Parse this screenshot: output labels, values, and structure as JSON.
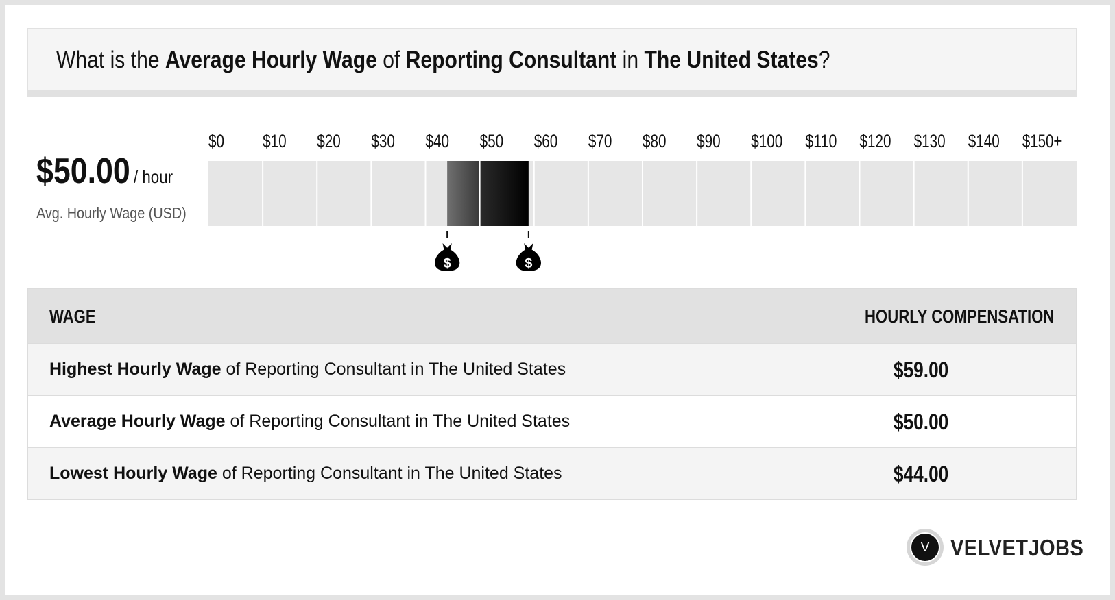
{
  "question": {
    "p1": "What is the ",
    "b1": "Average Hourly Wage",
    "p2": " of ",
    "b2": "Reporting Consultant",
    "p3": " in ",
    "b3": "The United States",
    "p4": "?"
  },
  "summary": {
    "value": "$50.00",
    "unit": "/ hour",
    "label": "Avg. Hourly Wage (USD)"
  },
  "chart_data": {
    "type": "bar",
    "ticks": [
      "$0",
      "$10",
      "$20",
      "$30",
      "$40",
      "$50",
      "$60",
      "$70",
      "$80",
      "$90",
      "$100",
      "$110",
      "$120",
      "$130",
      "$140",
      "$150+"
    ],
    "xlim": [
      0,
      160
    ],
    "range": {
      "low": 44,
      "average": 50,
      "high": 59
    },
    "colors": {
      "background": "#e6e6e6",
      "low_segment_start": "#707070",
      "low_segment_end": "#3a3a3a",
      "high_segment_start": "#2a2a2a",
      "high_segment_end": "#000000"
    },
    "markers": [
      {
        "value": 44,
        "icon": "money-bag-icon",
        "symbol": "$"
      },
      {
        "value": 59,
        "icon": "money-bag-icon",
        "symbol": "$"
      }
    ]
  },
  "table": {
    "header_wage": "WAGE",
    "header_comp": "HOURLY COMPENSATION",
    "rows": [
      {
        "bold": "Highest Hourly Wage",
        "rest": " of Reporting Consultant in The United States",
        "value": "$59.00"
      },
      {
        "bold": "Average Hourly Wage",
        "rest": " of Reporting Consultant in The United States",
        "value": "$50.00"
      },
      {
        "bold": "Lowest Hourly Wage",
        "rest": " of Reporting Consultant in The United States",
        "value": "$44.00"
      }
    ]
  },
  "brand": {
    "logo_letter": "V",
    "name": "VELVETJOBS"
  }
}
